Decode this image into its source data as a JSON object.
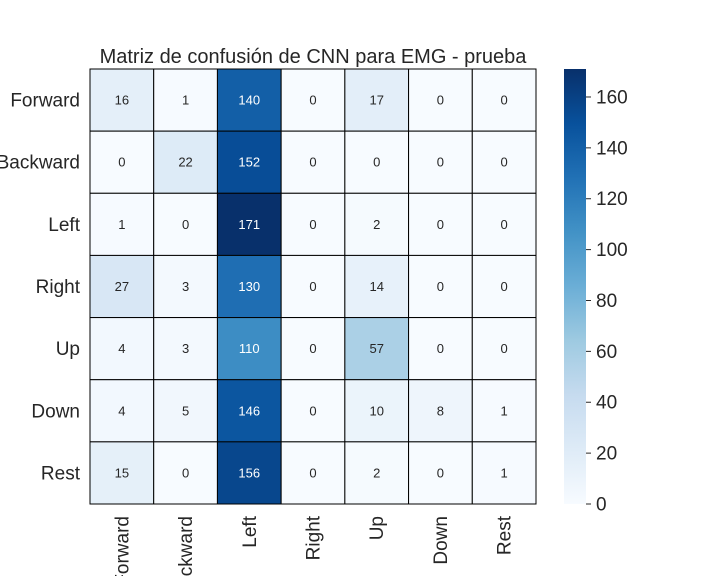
{
  "chart_data": {
    "type": "heatmap",
    "title": "Matriz de confusión de CNN para EMG - prueba",
    "xlabel": "",
    "ylabel": "",
    "row_labels": [
      "Forward",
      "Backward",
      "Left",
      "Right",
      "Up",
      "Down",
      "Rest"
    ],
    "col_labels": [
      "Forward",
      "Backward",
      "Left",
      "Right",
      "Up",
      "Down",
      "Rest"
    ],
    "values": [
      [
        16,
        1,
        140,
        0,
        17,
        0,
        0
      ],
      [
        0,
        22,
        152,
        0,
        0,
        0,
        0
      ],
      [
        1,
        0,
        171,
        0,
        2,
        0,
        0
      ],
      [
        27,
        3,
        130,
        0,
        14,
        0,
        0
      ],
      [
        4,
        3,
        110,
        0,
        57,
        0,
        0
      ],
      [
        4,
        5,
        146,
        0,
        10,
        8,
        1
      ],
      [
        15,
        0,
        156,
        0,
        2,
        0,
        1
      ]
    ],
    "colormap": "Blues",
    "vmin": 0,
    "vmax": 171,
    "colorbar_ticks": [
      0,
      20,
      40,
      60,
      80,
      100,
      120,
      140,
      160
    ],
    "grid": true,
    "annotated": true
  }
}
